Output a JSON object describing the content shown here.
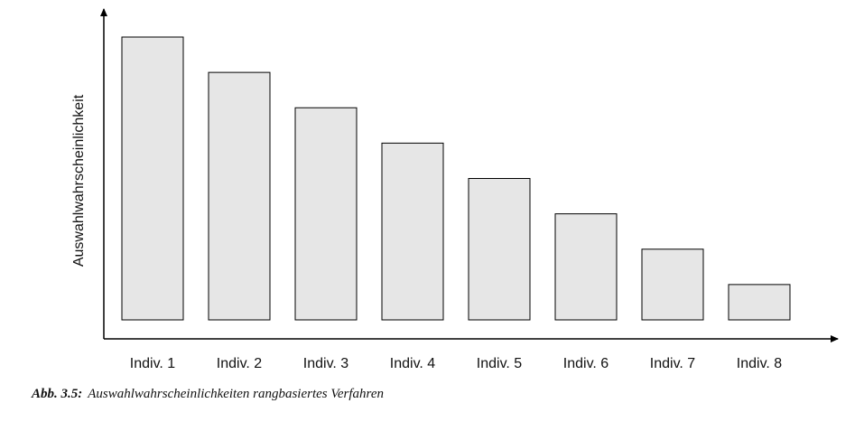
{
  "chart_data": {
    "type": "bar",
    "categories": [
      "Indiv. 1",
      "Indiv. 2",
      "Indiv. 3",
      "Indiv. 4",
      "Indiv. 5",
      "Indiv. 6",
      "Indiv. 7",
      "Indiv. 8"
    ],
    "values": [
      8,
      7,
      6,
      5,
      4,
      3,
      2,
      1
    ],
    "ylabel": "Auswahlwahrscheinlichkeit",
    "xlabel": "",
    "ylim": [
      0,
      8.5
    ],
    "grid": false,
    "bar_fill": "#e6e6e6",
    "bar_stroke": "#000000"
  },
  "caption": {
    "label": "Abb. 3.5:",
    "text": "Auswahlwahrscheinlichkeiten rangbasiertes Verfahren"
  }
}
